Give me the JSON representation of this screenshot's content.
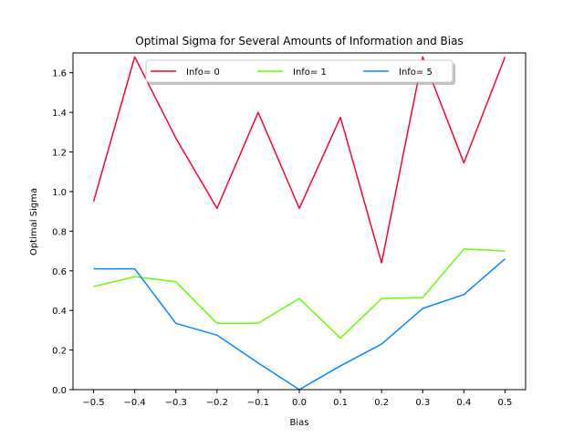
{
  "chart_data": {
    "type": "line",
    "title": "Optimal Sigma for Several Amounts of Information and Bias",
    "xlabel": "Bias",
    "ylabel": "Optimal Sigma",
    "x": [
      -0.5,
      -0.4,
      -0.3,
      -0.2,
      -0.1,
      0.0,
      0.1,
      0.2,
      0.3,
      0.4,
      0.5
    ],
    "xticks": [
      "−0.5",
      "−0.4",
      "−0.3",
      "−0.2",
      "−0.1",
      "0.0",
      "0.1",
      "0.2",
      "0.3",
      "0.4",
      "0.5"
    ],
    "xlim": [
      -0.55,
      0.55
    ],
    "ylim": [
      0.0,
      1.7
    ],
    "yticks": [
      0.0,
      0.2,
      0.4,
      0.6,
      0.8,
      1.0,
      1.2,
      1.4,
      1.6
    ],
    "ytick_labels": [
      "0.0",
      "0.2",
      "0.4",
      "0.6",
      "0.8",
      "1.0",
      "1.2",
      "1.4",
      "1.6"
    ],
    "grid": false,
    "legend_position": "top-center",
    "series": [
      {
        "name": "Info= 0",
        "color": "#ff0033",
        "values": [
          0.95,
          1.68,
          1.27,
          0.915,
          1.4,
          0.915,
          1.375,
          0.64,
          1.68,
          1.145,
          1.68
        ]
      },
      {
        "name": "Info= 1",
        "color": "#66ff00",
        "values": [
          0.52,
          0.57,
          0.545,
          0.335,
          0.335,
          0.46,
          0.26,
          0.46,
          0.465,
          0.71,
          0.7
        ]
      },
      {
        "name": "Info= 5",
        "color": "#0088ff",
        "values": [
          0.61,
          0.61,
          0.335,
          0.275,
          0.135,
          0.0,
          0.12,
          0.23,
          0.41,
          0.48,
          0.66
        ]
      }
    ]
  }
}
